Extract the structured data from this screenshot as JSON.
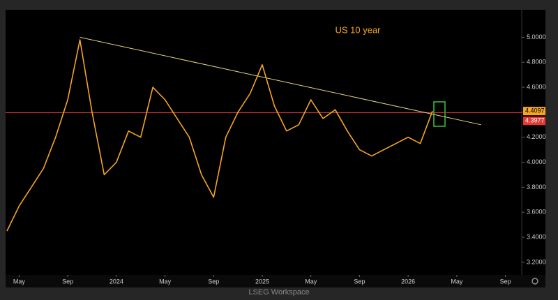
{
  "chart_data": {
    "type": "line",
    "title": "US 10 year",
    "color": "#f5a623",
    "x": [
      "2023-04",
      "2023-05",
      "2023-06",
      "2023-07",
      "2023-08",
      "2023-09",
      "2023-10",
      "2023-11",
      "2023-12",
      "2024-01",
      "2024-02",
      "2024-03",
      "2024-04",
      "2024-05",
      "2024-06",
      "2024-07",
      "2024-08",
      "2024-09",
      "2024-10",
      "2024-11",
      "2024-12",
      "2025-01",
      "2025-02",
      "2025-03",
      "2025-04",
      "2025-05",
      "2025-06",
      "2025-07",
      "2025-08",
      "2025-09",
      "2025-10",
      "2025-11",
      "2025-12",
      "2026-01",
      "2026-02",
      "2026-03"
    ],
    "values": [
      3.45,
      3.65,
      3.8,
      3.95,
      4.2,
      4.5,
      4.98,
      4.4,
      3.9,
      4.0,
      4.25,
      4.2,
      4.6,
      4.5,
      4.35,
      4.2,
      3.9,
      3.72,
      4.2,
      4.4,
      4.55,
      4.78,
      4.45,
      4.25,
      4.3,
      4.5,
      4.35,
      4.42,
      4.25,
      4.1,
      4.05,
      4.1,
      4.15,
      4.2,
      4.15,
      4.4097
    ],
    "last_value": 4.4097,
    "reference_line": {
      "value": 4.3977,
      "color": "#e53935"
    },
    "trendline": {
      "x": [
        "2023-10",
        "2026-07"
      ],
      "values": [
        5.0,
        4.3
      ],
      "color": "#e6d57a"
    },
    "xlim": [
      "2023-04",
      "2026-10"
    ],
    "xticks": [
      {
        "value": "2023-05",
        "label": "May"
      },
      {
        "value": "2023-09",
        "label": "Sep"
      },
      {
        "value": "2024-01",
        "label": "2024"
      },
      {
        "value": "2024-05",
        "label": "May"
      },
      {
        "value": "2024-09",
        "label": "Sep"
      },
      {
        "value": "2025-01",
        "label": "2025"
      },
      {
        "value": "2025-05",
        "label": "May"
      },
      {
        "value": "2025-09",
        "label": "Sep"
      },
      {
        "value": "2026-01",
        "label": "2026"
      },
      {
        "value": "2026-05",
        "label": "May"
      },
      {
        "value": "2026-09",
        "label": "Sep"
      }
    ],
    "ylim": [
      3.11,
      5.22
    ],
    "yticks": [
      {
        "value": 3.2,
        "label": "3.2000"
      },
      {
        "value": 3.4,
        "label": "3.4000"
      },
      {
        "value": 3.6,
        "label": "3.6000"
      },
      {
        "value": 3.8,
        "label": "3.8000"
      },
      {
        "value": 4.0,
        "label": "4.0000"
      },
      {
        "value": 4.2,
        "label": "4.2000"
      },
      {
        "value": 4.4,
        "label": "4.4000"
      },
      {
        "value": 4.6,
        "label": "4.6000"
      },
      {
        "value": 4.8,
        "label": "4.8000"
      },
      {
        "value": 5.0,
        "label": "5.0000"
      }
    ],
    "footer": "LSEG Workspace"
  }
}
